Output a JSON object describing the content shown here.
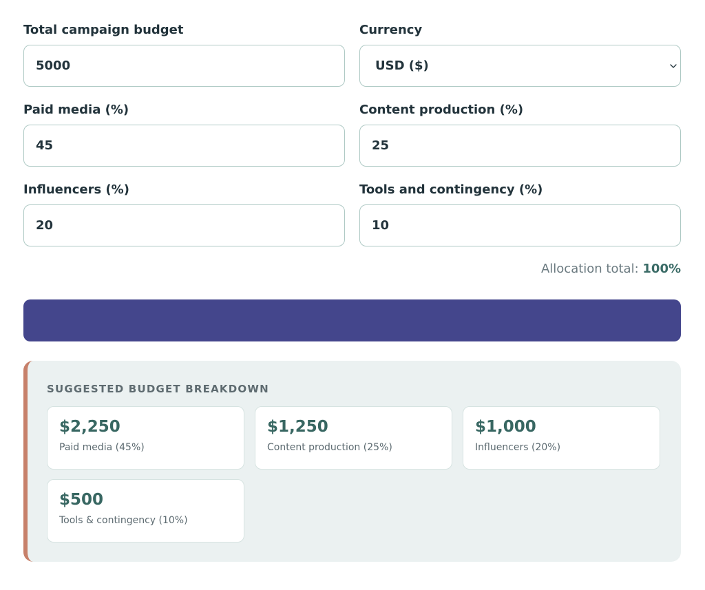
{
  "form": {
    "budget": {
      "label": "Total campaign budget",
      "value": "5000"
    },
    "currency": {
      "label": "Currency",
      "value": "USD ($)"
    },
    "paid_media": {
      "label": "Paid media (%)",
      "value": "45"
    },
    "content_production": {
      "label": "Content production (%)",
      "value": "25"
    },
    "influencers": {
      "label": "Influencers (%)",
      "value": "20"
    },
    "tools": {
      "label": "Tools and contingency (%)",
      "value": "10"
    }
  },
  "allocation": {
    "label": "Allocation total:",
    "value": "100%"
  },
  "cta": {
    "label": ""
  },
  "breakdown": {
    "title": "SUGGESTED BUDGET BREAKDOWN",
    "cards": [
      {
        "amount": "$2,250",
        "desc": "Paid media (45%)"
      },
      {
        "amount": "$1,250",
        "desc": "Content production (25%)"
      },
      {
        "amount": "$1,000",
        "desc": "Influencers (20%)"
      },
      {
        "amount": "$500",
        "desc": "Tools & contingency (10%)"
      }
    ]
  },
  "colors": {
    "accent": "#44468c",
    "card_amount": "#386762",
    "breakdown_bg": "#ebf1f1",
    "breakdown_border": "#c7806a",
    "input_border": "#aec9c4"
  },
  "icons": {
    "select": "chevron-down-icon"
  }
}
